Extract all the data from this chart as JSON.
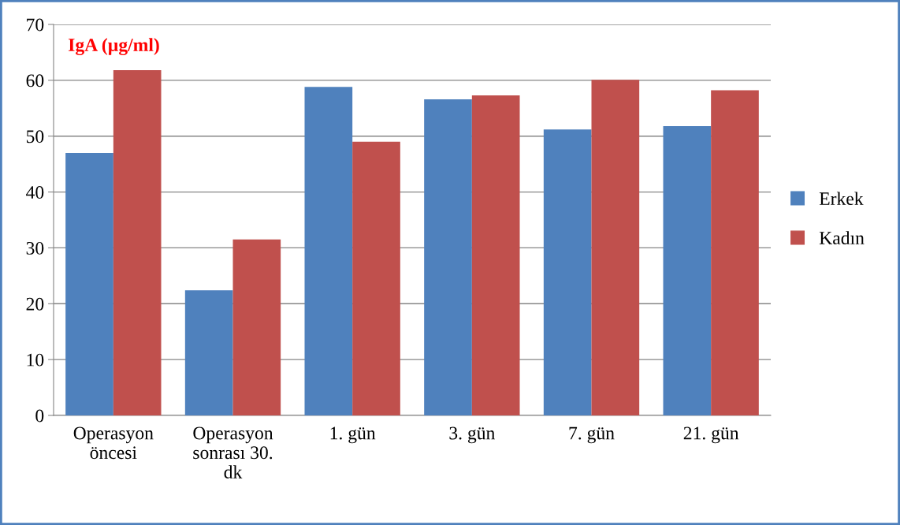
{
  "chart_data": {
    "type": "bar",
    "title": "IgA (µg/ml)",
    "categories": [
      "Operasyon\nöncesi",
      "Operasyon\nsonrası 30.\ndk",
      "1. gün",
      "3. gün",
      "7. gün",
      "21. gün"
    ],
    "series": [
      {
        "name": "Erkek",
        "color": "#4f81bd",
        "values": [
          47.0,
          22.4,
          58.8,
          56.6,
          51.2,
          51.8
        ]
      },
      {
        "name": "Kadın",
        "color": "#c0504d",
        "values": [
          61.8,
          31.5,
          49.0,
          57.3,
          60.1,
          58.2
        ]
      }
    ],
    "ylim": [
      0,
      70
    ],
    "yticks": [
      0,
      10,
      20,
      30,
      40,
      50,
      60,
      70
    ],
    "grid": "y",
    "legend": "right"
  }
}
